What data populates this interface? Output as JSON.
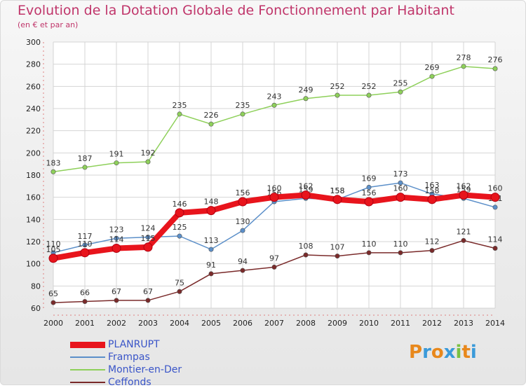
{
  "header": {
    "title": "Evolution de la Dotation Globale de Fonctionnement par Habitant",
    "subtitle": "(en € et par an)"
  },
  "logo": {
    "text": "ProXiti",
    "letters": [
      "P",
      "r",
      "o",
      "x",
      "i",
      "t",
      "i"
    ],
    "colors": [
      "#e8881c",
      "#3a9ad9",
      "#e8881c",
      "#3a9ad9",
      "#7ac142",
      "#e8881c",
      "#3a9ad9"
    ]
  },
  "chart_data": {
    "type": "line",
    "title": "Evolution de la Dotation Globale de Fonctionnement par Habitant",
    "subtitle": "(en € et par an)",
    "x": [
      "2000",
      "2001",
      "2002",
      "2003",
      "2004",
      "2005",
      "2006",
      "2007",
      "2008",
      "2009",
      "2010",
      "2011",
      "2012",
      "2013",
      "2014"
    ],
    "ylim": [
      60,
      300
    ],
    "yticks": [
      60,
      80,
      100,
      120,
      140,
      160,
      180,
      200,
      220,
      240,
      260,
      280,
      300
    ],
    "grid": true,
    "legend_position": "bottom-left",
    "series": [
      {
        "name": "PLANRUPT",
        "color": "#e8141c",
        "emphasis": true,
        "values": [
          105,
          110,
          114,
          115,
          146,
          148,
          156,
          160,
          162,
          158,
          156,
          160,
          158,
          162,
          160
        ],
        "labels": [
          "105",
          "110",
          "114",
          "115",
          "146",
          "148",
          "156",
          "160",
          "162",
          "158",
          "156",
          "160",
          "158",
          "162",
          "160"
        ]
      },
      {
        "name": "Frampas",
        "color": "#5b8fc9",
        "values": [
          110,
          117,
          123,
          124,
          125,
          113,
          130,
          156,
          159,
          158,
          169,
          173,
          163,
          159,
          151
        ],
        "labels": [
          "110",
          "117",
          "123",
          "124",
          "125",
          "113",
          "130",
          "156",
          "159",
          "158",
          "169",
          "173",
          "163",
          "159",
          "151"
        ]
      },
      {
        "name": "Montier-en-Der",
        "color": "#8ed05a",
        "values": [
          183,
          187,
          191,
          192,
          235,
          226,
          235,
          243,
          249,
          252,
          252,
          255,
          269,
          278,
          276
        ],
        "labels": [
          "183",
          "187",
          "191",
          "192",
          "235",
          "226",
          "235",
          "243",
          "249",
          "252",
          "252",
          "255",
          "269",
          "278",
          "276"
        ]
      },
      {
        "name": "Ceffonds",
        "color": "#7a2a2a",
        "values": [
          65,
          66,
          67,
          67,
          75,
          91,
          94,
          97,
          108,
          107,
          110,
          110,
          112,
          121,
          114
        ],
        "labels": [
          "65",
          "66",
          "67",
          "67",
          "75",
          "91",
          "94",
          "97",
          "108",
          "107",
          "110",
          "110",
          "112",
          "121",
          "114"
        ]
      }
    ]
  }
}
